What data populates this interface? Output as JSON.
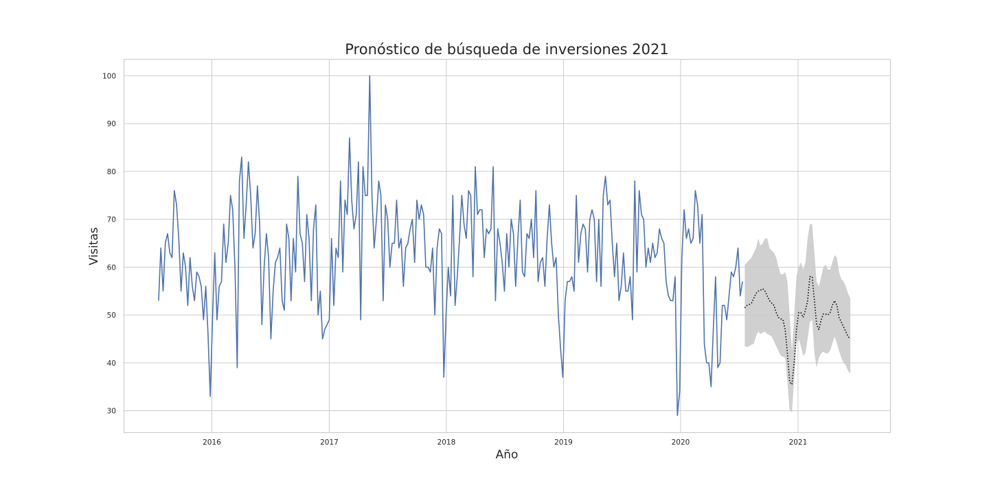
{
  "chart_data": {
    "type": "line",
    "title": "Pronóstico de búsqueda de inversiones 2021",
    "xlabel": "Año",
    "ylabel": "Visitas",
    "xlim": [
      "2015-04-01",
      "2021-10-15"
    ],
    "ylim": [
      25.5,
      103.5
    ],
    "x_ticks": [
      "2016",
      "2017",
      "2018",
      "2019",
      "2020",
      "2021"
    ],
    "y_ticks": [
      30,
      40,
      50,
      60,
      70,
      80,
      90,
      100
    ],
    "grid": true,
    "legend": "none",
    "colors": {
      "actual": "#4c72b0",
      "forecast": "#000000",
      "interval": "#c8c8c8",
      "grid": "#cccccc"
    },
    "series": [
      {
        "style": "solid",
        "start": "2015-07-19",
        "step_days": 7,
        "values": [
          53,
          64,
          55,
          65,
          67,
          63,
          62,
          76,
          73,
          66,
          55,
          63,
          60,
          52,
          62,
          56,
          53,
          59,
          58,
          56,
          49,
          56,
          46,
          33,
          49,
          63,
          49,
          56,
          57,
          69,
          61,
          65,
          75,
          72,
          60,
          39,
          78,
          83,
          66,
          73,
          82,
          75,
          64,
          67,
          77,
          69,
          48,
          60,
          67,
          62,
          45,
          55,
          61,
          62,
          64,
          53,
          51,
          69,
          66,
          53,
          66,
          59,
          79,
          67,
          65,
          57,
          71,
          66,
          53,
          68,
          73,
          50,
          55,
          45,
          47,
          48,
          49,
          66,
          52,
          64,
          62,
          78,
          59,
          74,
          71,
          87,
          74,
          68,
          71,
          82,
          49,
          81,
          75,
          75,
          100,
          75,
          64,
          70,
          78,
          75,
          53,
          73,
          70,
          60,
          65,
          65,
          74,
          64,
          66,
          56,
          64,
          65,
          68,
          70,
          61,
          74,
          70,
          73,
          71,
          60,
          60,
          59,
          64,
          50,
          64,
          68,
          67,
          37,
          50,
          60,
          54,
          75,
          52,
          58,
          66,
          75,
          69,
          66,
          76,
          75,
          58,
          81,
          71,
          72,
          72,
          62,
          68,
          67,
          68,
          81,
          53,
          68,
          65,
          61,
          55,
          67,
          60,
          70,
          67,
          56,
          66,
          74,
          59,
          58,
          67,
          66,
          70,
          62,
          76,
          57,
          61,
          62,
          56,
          66,
          73,
          65,
          60,
          62,
          50,
          43,
          37,
          53,
          57,
          57,
          58,
          55,
          75,
          61,
          67,
          69,
          68,
          59,
          70,
          72,
          70,
          57,
          70,
          56,
          75,
          79,
          73,
          74,
          65,
          58,
          65,
          53,
          56,
          63,
          55,
          55,
          58,
          49,
          78,
          59,
          76,
          71,
          70,
          60,
          64,
          61,
          65,
          62,
          63,
          68,
          66,
          65,
          57,
          54,
          53,
          53,
          58,
          29,
          34,
          62,
          72,
          66,
          68,
          65,
          66,
          76,
          73,
          65,
          71,
          44,
          40,
          40,
          35,
          47,
          58,
          39,
          40,
          52,
          52,
          49,
          54,
          59,
          58,
          60,
          64,
          54,
          57
        ]
      },
      {
        "style": "dotted",
        "start": "2020-07-19",
        "step_days": 7,
        "values": [
          51.5,
          52,
          52.2,
          52.5,
          53.5,
          54.5,
          55,
          55.2,
          55.5,
          55,
          54,
          53,
          52.5,
          52,
          50.5,
          49.5,
          49.2,
          49,
          47,
          42,
          36,
          35.5,
          40,
          47,
          50.5,
          50.5,
          49.5,
          51,
          53,
          58,
          58,
          53,
          48,
          47,
          49,
          50.2,
          50.2,
          50,
          50.5,
          52,
          53,
          52,
          49.5,
          48.5,
          47.5,
          46.5,
          45.5,
          45
        ]
      }
    ],
    "interval": {
      "start": "2020-07-19",
      "step_days": 7,
      "upper": [
        60.5,
        61,
        61.5,
        62,
        63,
        64,
        66,
        64.5,
        65,
        66,
        66,
        64,
        63.5,
        63,
        62,
        60,
        58.5,
        58.5,
        59,
        57,
        50,
        42.5,
        50,
        58,
        60,
        61,
        59.5,
        61,
        66,
        69,
        69,
        63,
        57,
        56,
        58,
        60,
        60.5,
        59.5,
        59.5,
        61,
        62.5,
        62,
        59,
        57.5,
        57,
        56,
        54.5,
        53.5
      ],
      "lower": [
        43.5,
        43.3,
        43.5,
        43.8,
        44,
        45.5,
        46.5,
        46,
        46.3,
        46.5,
        46,
        45.8,
        45.5,
        44.5,
        43.5,
        42.5,
        41.5,
        41.3,
        41,
        36,
        30,
        29.7,
        36.5,
        44,
        45,
        43.5,
        41.5,
        42,
        45,
        48.5,
        49,
        42,
        39,
        41,
        42,
        42.3,
        42,
        42,
        42.5,
        44,
        45.5,
        44,
        42.5,
        41,
        40,
        39.5,
        38.3,
        37.8
      ]
    }
  }
}
